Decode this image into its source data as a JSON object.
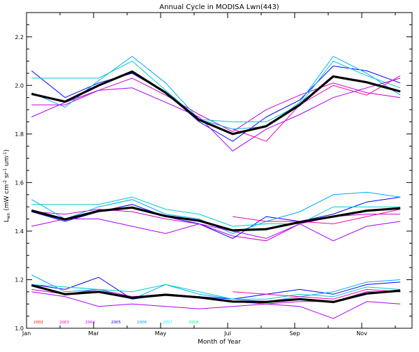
{
  "chart_data": {
    "type": "line",
    "title": "Annual Cycle in MODISA Lwn(443)",
    "xlabel": "Month of Year",
    "ylabel": "L_wn (mW cm^-2 sr^-1 um^-1)",
    "xlim": [
      1,
      12.5
    ],
    "ylim": [
      1.0,
      2.3
    ],
    "xticks": [
      {
        "v": 1,
        "label": "Jan"
      },
      {
        "v": 3,
        "label": "Mar"
      },
      {
        "v": 5,
        "label": "May"
      },
      {
        "v": 7,
        "label": "Jul"
      },
      {
        "v": 9,
        "label": "Sep"
      },
      {
        "v": 11,
        "label": "Nov"
      }
    ],
    "yticks": [
      {
        "v": 1.0,
        "label": "1.0"
      },
      {
        "v": 1.2,
        "label": "1.2"
      },
      {
        "v": 1.4,
        "label": "1.4"
      },
      {
        "v": 1.6,
        "label": "1.6"
      },
      {
        "v": 1.8,
        "label": "1.8"
      },
      {
        "v": 2.0,
        "label": "2.0"
      },
      {
        "v": 2.2,
        "label": "2.2"
      }
    ],
    "months": [
      1.15,
      2.15,
      3.15,
      4.15,
      5.15,
      6.15,
      7.15,
      8.15,
      9.15,
      10.15,
      11.15,
      12.15
    ],
    "legend": [
      {
        "label": "2002",
        "color": "#ff0000"
      },
      {
        "label": "2003",
        "color": "#ff00aa"
      },
      {
        "label": "2004",
        "color": "#bb00ff"
      },
      {
        "label": "2005",
        "color": "#0000ff"
      },
      {
        "label": "2006",
        "color": "#0099ff"
      },
      {
        "label": "2007",
        "color": "#00ffff"
      },
      {
        "label": "2008",
        "color": "#00ff88"
      }
    ],
    "groups": [
      {
        "mean": [
          1.965,
          1.933,
          2.0,
          2.057,
          1.97,
          1.858,
          1.8,
          1.832,
          1.92,
          2.037,
          2.013,
          1.975
        ],
        "series": [
          {
            "color": "#cc00cc",
            "start": 0,
            "values": [
              1.92,
              1.92,
              1.98,
              2.03,
              1.96,
              1.88,
              1.81,
              1.9,
              1.96,
              2.01,
              1.97,
              1.95
            ]
          },
          {
            "color": "#0000ff",
            "start": 0,
            "values": [
              2.06,
              1.95,
              2.01,
              2.05,
              1.97,
              1.85,
              1.77,
              1.87,
              1.94,
              2.08,
              2.06,
              2.01
            ]
          },
          {
            "color": "#00aaff",
            "start": 0,
            "values": [
              1.97,
              1.91,
              2.02,
              2.12,
              2.01,
              1.86,
              1.82,
              1.83,
              1.93,
              2.12,
              2.05,
              1.96
            ]
          },
          {
            "color": "#00cccc",
            "start": 0,
            "values": [
              2.03,
              2.03,
              2.03,
              2.1,
              1.98,
              1.86,
              1.85,
              1.85,
              1.92,
              2.1,
              2.04,
              1.99
            ]
          },
          {
            "color": "#aa00ff",
            "start": 0,
            "values": [
              1.87,
              1.93,
              1.98,
              1.99,
              1.93,
              1.87,
              1.73,
              1.82,
              1.88,
              1.95,
              1.99,
              2.03
            ]
          },
          {
            "color": "#ff00aa",
            "start": 6,
            "values": [
              1.82,
              1.77,
              1.92,
              2.0,
              1.96,
              2.04
            ]
          }
        ]
      },
      {
        "mean": [
          1.485,
          1.448,
          1.483,
          1.497,
          1.462,
          1.443,
          1.403,
          1.408,
          1.437,
          1.46,
          1.484,
          1.494
        ],
        "series": [
          {
            "color": "#cc00cc",
            "start": 0,
            "values": [
              1.48,
              1.47,
              1.49,
              1.48,
              1.45,
              1.43,
              1.38,
              1.36,
              1.43,
              1.46,
              1.47,
              1.47
            ]
          },
          {
            "color": "#0000ff",
            "start": 0,
            "values": [
              1.48,
              1.44,
              1.48,
              1.51,
              1.46,
              1.43,
              1.37,
              1.46,
              1.44,
              1.47,
              1.52,
              1.54
            ]
          },
          {
            "color": "#00aaff",
            "start": 0,
            "values": [
              1.53,
              1.45,
              1.5,
              1.53,
              1.47,
              1.45,
              1.39,
              1.44,
              1.48,
              1.55,
              1.56,
              1.54
            ]
          },
          {
            "color": "#00cccc",
            "start": 0,
            "values": [
              1.51,
              1.51,
              1.51,
              1.54,
              1.49,
              1.47,
              1.42,
              1.43,
              1.43,
              1.5,
              1.5,
              1.5
            ]
          },
          {
            "color": "#aa00ff",
            "start": 0,
            "values": [
              1.42,
              1.45,
              1.45,
              1.42,
              1.39,
              1.43,
              1.4,
              1.37,
              1.43,
              1.36,
              1.42,
              1.44
            ]
          },
          {
            "color": "#ff00aa",
            "start": 6,
            "values": [
              1.46,
              1.44,
              1.44,
              1.43,
              1.46,
              1.49
            ]
          }
        ]
      },
      {
        "mean": [
          1.177,
          1.14,
          1.15,
          1.125,
          1.138,
          1.127,
          1.11,
          1.108,
          1.12,
          1.108,
          1.143,
          1.155
        ],
        "series": [
          {
            "color": "#cc00cc",
            "start": 0,
            "values": [
              1.16,
              1.14,
              1.16,
              1.13,
              1.14,
              1.13,
              1.11,
              1.1,
              1.11,
              1.11,
              1.15,
              1.15
            ]
          },
          {
            "color": "#0000ff",
            "start": 0,
            "values": [
              1.18,
              1.16,
              1.21,
              1.12,
              1.14,
              1.13,
              1.12,
              1.14,
              1.16,
              1.14,
              1.18,
              1.19
            ]
          },
          {
            "color": "#00aaff",
            "start": 0,
            "values": [
              1.22,
              1.15,
              1.16,
              1.12,
              1.18,
              1.14,
              1.12,
              1.11,
              1.13,
              1.15,
              1.19,
              1.2
            ]
          },
          {
            "color": "#00cccc",
            "start": 0,
            "values": [
              1.18,
              1.17,
              1.16,
              1.15,
              1.18,
              1.15,
              1.12,
              1.12,
              1.14,
              1.13,
              1.17,
              1.16
            ]
          },
          {
            "color": "#aa00ff",
            "start": 0,
            "values": [
              1.15,
              1.13,
              1.09,
              1.1,
              1.09,
              1.08,
              1.09,
              1.1,
              1.09,
              1.04,
              1.11,
              1.1
            ]
          },
          {
            "color": "#ff00aa",
            "start": 6,
            "values": [
              1.15,
              1.14,
              1.13,
              1.12,
              1.16,
              1.15
            ]
          }
        ]
      }
    ]
  }
}
